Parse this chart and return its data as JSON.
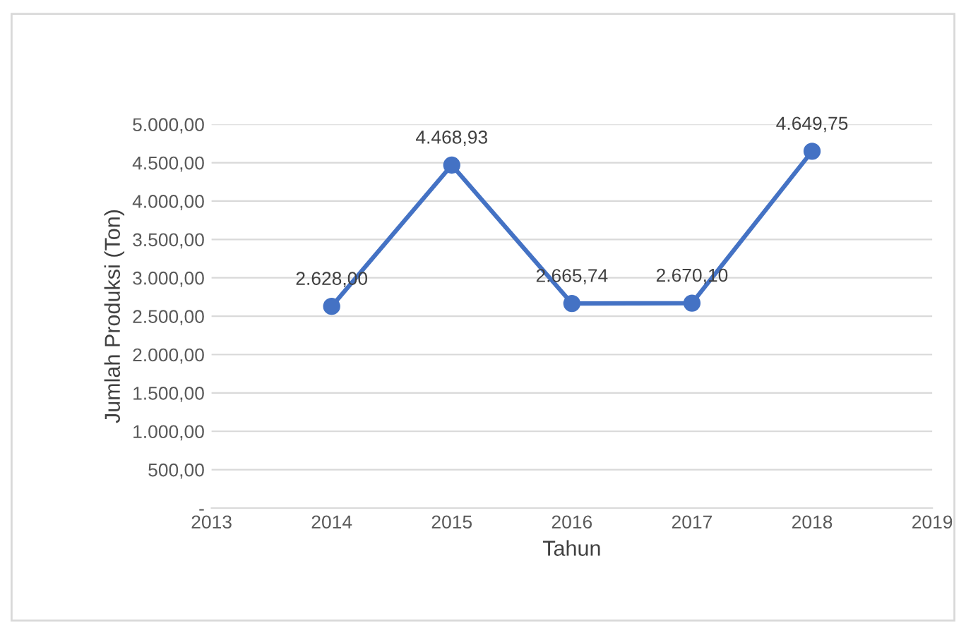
{
  "chart_data": {
    "type": "line",
    "xlabel": "Tahun",
    "ylabel": "Jumlah Produksi (Ton)",
    "x": [
      2014,
      2015,
      2016,
      2017,
      2018
    ],
    "series": [
      {
        "color": "#4472c4",
        "values": [
          2628.0,
          4468.93,
          2665.74,
          2670.1,
          4649.75
        ],
        "value_labels": [
          "2.628,00",
          "4.468,93",
          "2.665,74",
          "2.670,10",
          "4.649,75"
        ]
      }
    ],
    "xlim": [
      2013,
      2019
    ],
    "xticks": [
      2013,
      2014,
      2015,
      2016,
      2017,
      2018,
      2019
    ],
    "ylim": [
      0,
      5000
    ],
    "yticks": [
      {
        "value": 0,
        "label": "-"
      },
      {
        "value": 500,
        "label": "500,00"
      },
      {
        "value": 1000,
        "label": "1.000,00"
      },
      {
        "value": 1500,
        "label": "1.500,00"
      },
      {
        "value": 2000,
        "label": "2.000,00"
      },
      {
        "value": 2500,
        "label": "2.500,00"
      },
      {
        "value": 3000,
        "label": "3.000,00"
      },
      {
        "value": 3500,
        "label": "3.500,00"
      },
      {
        "value": 4000,
        "label": "4.000,00"
      },
      {
        "value": 4500,
        "label": "4.500,00"
      },
      {
        "value": 5000,
        "label": "5.000,00"
      }
    ],
    "grid": "y",
    "marker": "circle",
    "line_style": "solid",
    "legend": false
  }
}
